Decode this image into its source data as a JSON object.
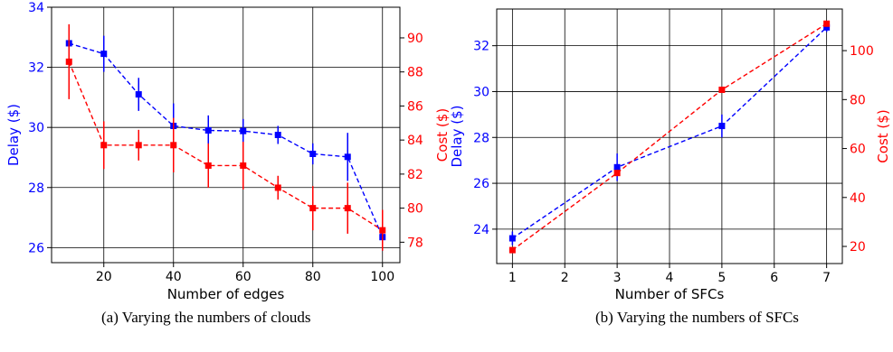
{
  "chart_data": [
    {
      "type": "line",
      "xlabel": "Number of edges",
      "ylabel_left": "Delay ($)",
      "ylabel_right": "Cost ($)",
      "xlim": [
        5,
        105
      ],
      "ylim_left": [
        25.5,
        34
      ],
      "ylim_right": [
        76.8,
        91.8
      ],
      "xticks": [
        20,
        40,
        60,
        80,
        100
      ],
      "yticks_left": [
        26,
        28,
        30,
        32,
        34
      ],
      "yticks_right": [
        78,
        80,
        82,
        84,
        86,
        88,
        90
      ],
      "grid": true,
      "x": [
        10,
        20,
        30,
        40,
        50,
        60,
        70,
        80,
        90,
        100
      ],
      "series": [
        {
          "axis": "left",
          "color": "#0000ff",
          "values": [
            32.8,
            32.45,
            31.1,
            30.05,
            29.9,
            29.88,
            29.75,
            29.12,
            29.02,
            26.35
          ],
          "errors": [
            0.55,
            0.6,
            0.55,
            0.75,
            0.5,
            0.4,
            0.3,
            0.35,
            0.8,
            0.45
          ]
        },
        {
          "axis": "right",
          "color": "#ff0000",
          "values": [
            88.6,
            83.7,
            83.7,
            83.7,
            82.5,
            82.5,
            81.2,
            80.0,
            80.0,
            78.7
          ],
          "errors": [
            2.2,
            1.4,
            0.9,
            1.6,
            1.3,
            1.4,
            0.7,
            1.3,
            1.5,
            1.2
          ]
        }
      ],
      "caption": "(a) Varying the numbers of clouds"
    },
    {
      "type": "line",
      "xlabel": "Number of SFCs",
      "ylabel_left": "Delay ($)",
      "ylabel_right": "Cost ($)",
      "xlim": [
        0.7,
        7.3
      ],
      "ylim_left": [
        22.5,
        33.6
      ],
      "ylim_right": [
        13,
        117
      ],
      "xticks": [
        1,
        2,
        3,
        4,
        5,
        6,
        7
      ],
      "yticks_left": [
        24,
        26,
        28,
        30,
        32
      ],
      "yticks_right": [
        20,
        40,
        60,
        80,
        100
      ],
      "grid": true,
      "x": [
        1,
        3,
        5,
        7
      ],
      "series": [
        {
          "axis": "left",
          "color": "#0000ff",
          "values": [
            23.6,
            26.7,
            28.5,
            32.8
          ],
          "errors": [
            0.3,
            0.6,
            0.5,
            0.2
          ]
        },
        {
          "axis": "right",
          "color": "#ff0000",
          "values": [
            18.5,
            50,
            84,
            111
          ],
          "errors": [
            0,
            0,
            0,
            0
          ]
        }
      ],
      "caption": "(b) Varying the numbers of SFCs"
    }
  ]
}
